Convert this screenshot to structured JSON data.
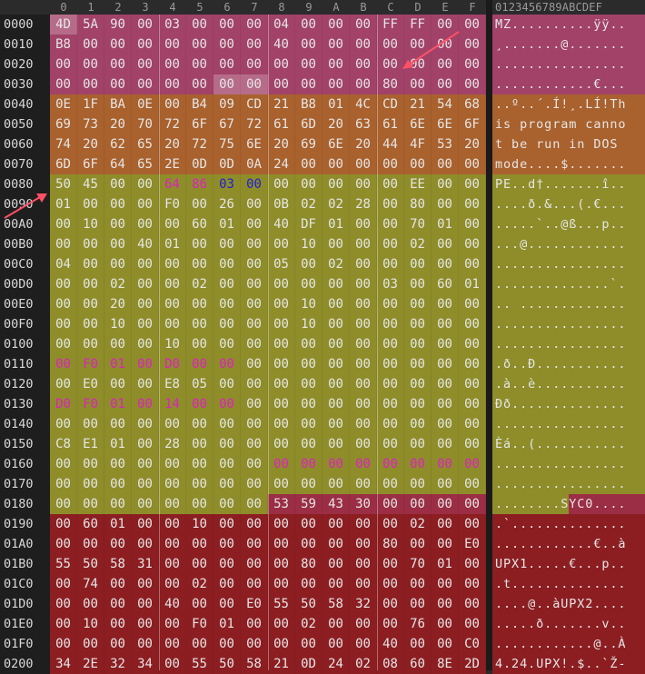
{
  "columns": [
    "0",
    "1",
    "2",
    "3",
    "4",
    "5",
    "6",
    "7",
    "8",
    "9",
    "A",
    "B",
    "C",
    "D",
    "E",
    "F"
  ],
  "ascii_header": "0123456789ABCDEF",
  "colors": {
    "region_mz": "#a24268",
    "region_stub": "#a9612d",
    "region_pe": "#8e8d2a",
    "region_syc": "#9b2d44",
    "region_upx": "#8c1e22",
    "region_tail": "#8c1e22",
    "text_default": "#e6e6e6",
    "text_magenta": "#e020c0",
    "text_blue": "#2020d0"
  },
  "rows": [
    {
      "offset": "0000",
      "bytes": [
        "4D",
        "5A",
        "90",
        "00",
        "03",
        "00",
        "00",
        "00",
        "04",
        "00",
        "00",
        "00",
        "FF",
        "FF",
        "00",
        "00"
      ],
      "ascii": "MZ..........ÿÿ.."
    },
    {
      "offset": "0010",
      "bytes": [
        "B8",
        "00",
        "00",
        "00",
        "00",
        "00",
        "00",
        "00",
        "40",
        "00",
        "00",
        "00",
        "00",
        "00",
        "00",
        "00"
      ],
      "ascii": "¸.......@......."
    },
    {
      "offset": "0020",
      "bytes": [
        "00",
        "00",
        "00",
        "00",
        "00",
        "00",
        "00",
        "00",
        "00",
        "00",
        "00",
        "00",
        "00",
        "00",
        "00",
        "00"
      ],
      "ascii": "................"
    },
    {
      "offset": "0030",
      "bytes": [
        "00",
        "00",
        "00",
        "00",
        "00",
        "00",
        "00",
        "00",
        "00",
        "00",
        "00",
        "00",
        "80",
        "00",
        "00",
        "00"
      ],
      "ascii": "............€..."
    },
    {
      "offset": "0040",
      "bytes": [
        "0E",
        "1F",
        "BA",
        "0E",
        "00",
        "B4",
        "09",
        "CD",
        "21",
        "B8",
        "01",
        "4C",
        "CD",
        "21",
        "54",
        "68"
      ],
      "ascii": "..º..´.Í!¸.LÍ!Th"
    },
    {
      "offset": "0050",
      "bytes": [
        "69",
        "73",
        "20",
        "70",
        "72",
        "6F",
        "67",
        "72",
        "61",
        "6D",
        "20",
        "63",
        "61",
        "6E",
        "6E",
        "6F"
      ],
      "ascii": "is program canno"
    },
    {
      "offset": "0060",
      "bytes": [
        "74",
        "20",
        "62",
        "65",
        "20",
        "72",
        "75",
        "6E",
        "20",
        "69",
        "6E",
        "20",
        "44",
        "4F",
        "53",
        "20"
      ],
      "ascii": "t be run in DOS "
    },
    {
      "offset": "0070",
      "bytes": [
        "6D",
        "6F",
        "64",
        "65",
        "2E",
        "0D",
        "0D",
        "0A",
        "24",
        "00",
        "00",
        "00",
        "00",
        "00",
        "00",
        "00"
      ],
      "ascii": "mode....$......."
    },
    {
      "offset": "0080",
      "bytes": [
        "50",
        "45",
        "00",
        "00",
        "64",
        "86",
        "03",
        "00",
        "00",
        "00",
        "00",
        "00",
        "00",
        "EE",
        "00",
        "00"
      ],
      "ascii": "PE..d†.......î.."
    },
    {
      "offset": "0090",
      "bytes": [
        "01",
        "00",
        "00",
        "00",
        "F0",
        "00",
        "26",
        "00",
        "0B",
        "02",
        "02",
        "28",
        "00",
        "80",
        "00",
        "00"
      ],
      "ascii": "....ð.&...(.€..."
    },
    {
      "offset": "00A0",
      "bytes": [
        "00",
        "10",
        "00",
        "00",
        "00",
        "60",
        "01",
        "00",
        "40",
        "DF",
        "01",
        "00",
        "00",
        "70",
        "01",
        "00"
      ],
      "ascii": ".....`..@ß...p.."
    },
    {
      "offset": "00B0",
      "bytes": [
        "00",
        "00",
        "00",
        "40",
        "01",
        "00",
        "00",
        "00",
        "00",
        "10",
        "00",
        "00",
        "00",
        "02",
        "00",
        "00"
      ],
      "ascii": "...@............"
    },
    {
      "offset": "00C0",
      "bytes": [
        "04",
        "00",
        "00",
        "00",
        "00",
        "00",
        "00",
        "00",
        "05",
        "00",
        "02",
        "00",
        "00",
        "00",
        "00",
        "00"
      ],
      "ascii": "................"
    },
    {
      "offset": "00D0",
      "bytes": [
        "00",
        "00",
        "02",
        "00",
        "00",
        "02",
        "00",
        "00",
        "00",
        "00",
        "00",
        "00",
        "03",
        "00",
        "60",
        "01"
      ],
      "ascii": "..............`."
    },
    {
      "offset": "00E0",
      "bytes": [
        "00",
        "00",
        "20",
        "00",
        "00",
        "00",
        "00",
        "00",
        "00",
        "10",
        "00",
        "00",
        "00",
        "00",
        "00",
        "00"
      ],
      "ascii": ".. ............."
    },
    {
      "offset": "00F0",
      "bytes": [
        "00",
        "00",
        "10",
        "00",
        "00",
        "00",
        "00",
        "00",
        "00",
        "10",
        "00",
        "00",
        "00",
        "00",
        "00",
        "00"
      ],
      "ascii": "................"
    },
    {
      "offset": "0100",
      "bytes": [
        "00",
        "00",
        "00",
        "00",
        "10",
        "00",
        "00",
        "00",
        "00",
        "00",
        "00",
        "00",
        "00",
        "00",
        "00",
        "00"
      ],
      "ascii": "................"
    },
    {
      "offset": "0110",
      "bytes": [
        "00",
        "F0",
        "01",
        "00",
        "D0",
        "00",
        "00",
        "00",
        "00",
        "00",
        "00",
        "00",
        "00",
        "00",
        "00",
        "00"
      ],
      "ascii": ".ð..Ð..........."
    },
    {
      "offset": "0120",
      "bytes": [
        "00",
        "E0",
        "00",
        "00",
        "E8",
        "05",
        "00",
        "00",
        "00",
        "00",
        "00",
        "00",
        "00",
        "00",
        "00",
        "00"
      ],
      "ascii": ".à..è..........."
    },
    {
      "offset": "0130",
      "bytes": [
        "D0",
        "F0",
        "01",
        "00",
        "14",
        "00",
        "00",
        "00",
        "00",
        "00",
        "00",
        "00",
        "00",
        "00",
        "00",
        "00"
      ],
      "ascii": "Ðð.............."
    },
    {
      "offset": "0140",
      "bytes": [
        "00",
        "00",
        "00",
        "00",
        "00",
        "00",
        "00",
        "00",
        "00",
        "00",
        "00",
        "00",
        "00",
        "00",
        "00",
        "00"
      ],
      "ascii": "................"
    },
    {
      "offset": "0150",
      "bytes": [
        "C8",
        "E1",
        "01",
        "00",
        "28",
        "00",
        "00",
        "00",
        "00",
        "00",
        "00",
        "00",
        "00",
        "00",
        "00",
        "00"
      ],
      "ascii": "Èá..(..........."
    },
    {
      "offset": "0160",
      "bytes": [
        "00",
        "00",
        "00",
        "00",
        "00",
        "00",
        "00",
        "00",
        "00",
        "00",
        "00",
        "00",
        "00",
        "00",
        "00",
        "00"
      ],
      "ascii": "................"
    },
    {
      "offset": "0170",
      "bytes": [
        "00",
        "00",
        "00",
        "00",
        "00",
        "00",
        "00",
        "00",
        "00",
        "00",
        "00",
        "00",
        "00",
        "00",
        "00",
        "00"
      ],
      "ascii": "................"
    },
    {
      "offset": "0180",
      "bytes": [
        "00",
        "00",
        "00",
        "00",
        "00",
        "00",
        "00",
        "00",
        "53",
        "59",
        "43",
        "30",
        "00",
        "00",
        "00",
        "00"
      ],
      "ascii": "........SYC0...."
    },
    {
      "offset": "0190",
      "bytes": [
        "00",
        "60",
        "01",
        "00",
        "00",
        "10",
        "00",
        "00",
        "00",
        "00",
        "00",
        "00",
        "00",
        "02",
        "00",
        "00"
      ],
      "ascii": ".`.............."
    },
    {
      "offset": "01A0",
      "bytes": [
        "00",
        "00",
        "00",
        "00",
        "00",
        "00",
        "00",
        "00",
        "00",
        "00",
        "00",
        "00",
        "80",
        "00",
        "00",
        "E0"
      ],
      "ascii": "............€..à"
    },
    {
      "offset": "01B0",
      "bytes": [
        "55",
        "50",
        "58",
        "31",
        "00",
        "00",
        "00",
        "00",
        "00",
        "80",
        "00",
        "00",
        "00",
        "70",
        "01",
        "00"
      ],
      "ascii": "UPX1.....€...p.."
    },
    {
      "offset": "01C0",
      "bytes": [
        "00",
        "74",
        "00",
        "00",
        "00",
        "02",
        "00",
        "00",
        "00",
        "00",
        "00",
        "00",
        "00",
        "00",
        "00",
        "00"
      ],
      "ascii": ".t.............."
    },
    {
      "offset": "01D0",
      "bytes": [
        "00",
        "00",
        "00",
        "00",
        "40",
        "00",
        "00",
        "E0",
        "55",
        "50",
        "58",
        "32",
        "00",
        "00",
        "00",
        "00"
      ],
      "ascii": "....@..àUPX2...."
    },
    {
      "offset": "01E0",
      "bytes": [
        "00",
        "10",
        "00",
        "00",
        "00",
        "F0",
        "01",
        "00",
        "00",
        "02",
        "00",
        "00",
        "00",
        "76",
        "00",
        "00"
      ],
      "ascii": ".....ð.......v.."
    },
    {
      "offset": "01F0",
      "bytes": [
        "00",
        "00",
        "00",
        "00",
        "00",
        "00",
        "00",
        "00",
        "00",
        "00",
        "00",
        "00",
        "40",
        "00",
        "00",
        "C0"
      ],
      "ascii": "............@..À"
    },
    {
      "offset": "0200",
      "bytes": [
        "34",
        "2E",
        "32",
        "34",
        "00",
        "55",
        "50",
        "58",
        "21",
        "0D",
        "24",
        "02",
        "08",
        "60",
        "8E",
        "2D"
      ],
      "ascii": "4.24.UPX!.$..`Ž-"
    }
  ]
}
